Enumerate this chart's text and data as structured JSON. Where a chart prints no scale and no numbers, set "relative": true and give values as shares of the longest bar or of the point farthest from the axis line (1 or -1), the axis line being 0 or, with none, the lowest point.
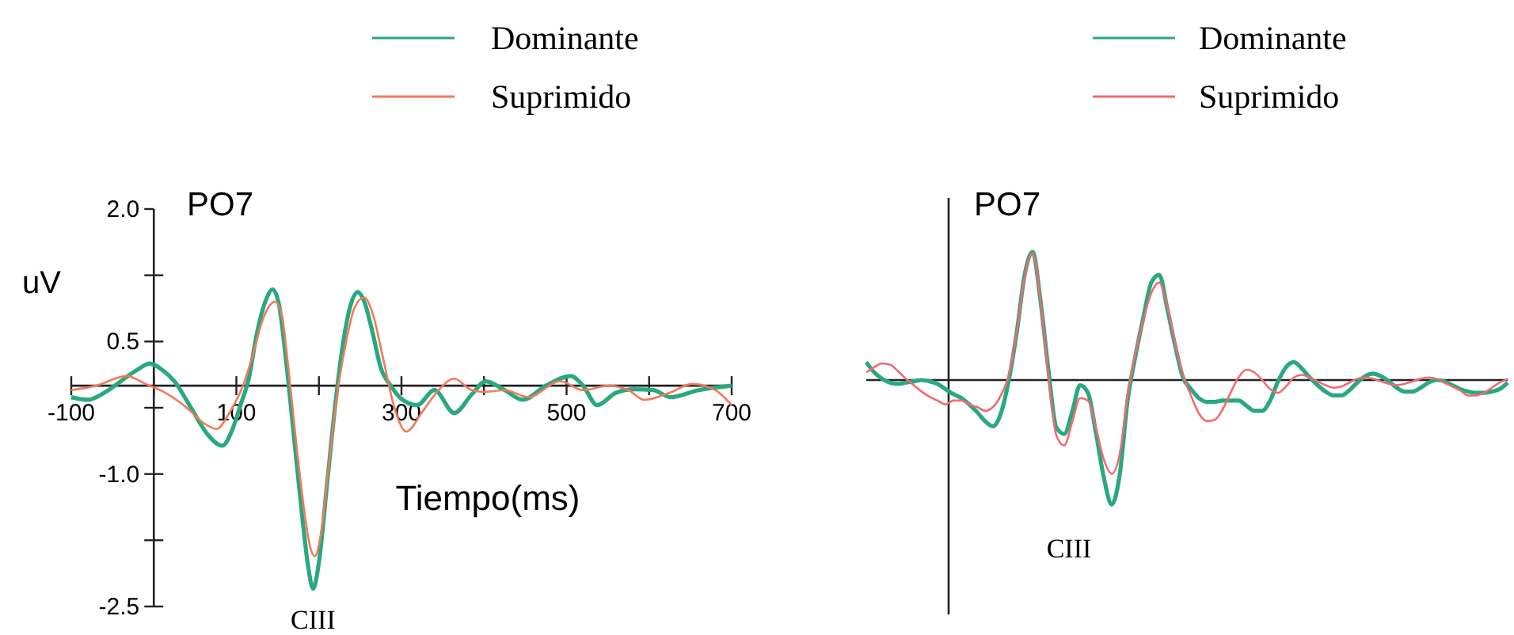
{
  "chart_data": [
    {
      "type": "line",
      "title": "PO7",
      "xlabel": "Tiempo(ms)",
      "ylabel": "uV",
      "xlim": [
        -100,
        700
      ],
      "ylim": [
        -2.5,
        2.0
      ],
      "xticks": [
        -100,
        {
          "value": 0,
          "label": null
        },
        100,
        {
          "value": 200,
          "label": null
        },
        300,
        {
          "value": 400,
          "label": null
        },
        500,
        {
          "value": 600,
          "label": null
        },
        700
      ],
      "yticks": [
        {
          "value": 2,
          "label": "2.0"
        },
        {
          "value": 1.25,
          "label": null
        },
        0.5,
        {
          "value": -0.25,
          "label": null
        },
        {
          "value": -1,
          "label": "-1.0"
        },
        {
          "value": -1.75,
          "label": null
        },
        -2.5
      ],
      "legend": "top",
      "line_style": "solid",
      "marker": "none",
      "annotations": [
        {
          "text": "CIII",
          "x": 193,
          "y": -2.3
        }
      ],
      "series": [
        {
          "name": "Dominante",
          "color": "#2aa880",
          "x": [
            -100,
            -80,
            -60,
            -40,
            -20,
            -5,
            10,
            25,
            45,
            65,
            83,
            95,
            105,
            115,
            125,
            135,
            144,
            152,
            160,
            170,
            180,
            187,
            193,
            200,
            210,
            220,
            228,
            238,
            247,
            255,
            265,
            275,
            287,
            300,
            319,
            340,
            364,
            385,
            402,
            425,
            447,
            475,
            505,
            520,
            537,
            560,
            582,
            605,
            626,
            660,
            700
          ],
          "values": [
            -0.13,
            -0.16,
            -0.08,
            0.05,
            0.18,
            0.25,
            0.18,
            0.05,
            -0.25,
            -0.55,
            -0.68,
            -0.5,
            -0.22,
            0.08,
            0.6,
            0.95,
            1.09,
            0.9,
            0.3,
            -0.6,
            -1.5,
            -2.05,
            -2.3,
            -2.0,
            -1.1,
            -0.2,
            0.4,
            0.9,
            1.06,
            0.95,
            0.6,
            0.2,
            0,
            -0.15,
            -0.22,
            -0.05,
            -0.31,
            -0.1,
            0.05,
            -0.05,
            -0.16,
            0,
            0.11,
            0,
            -0.22,
            -0.08,
            -0.04,
            -0.05,
            -0.13,
            -0.05,
            0
          ]
        },
        {
          "name": "Suprimido",
          "color": "#f27a5a",
          "x": [
            -100,
            -70,
            -33,
            -10,
            12,
            40,
            60,
            76,
            92,
            108,
            120,
            132,
            147,
            155,
            163,
            172,
            182,
            190,
            195,
            202,
            212,
            222,
            232,
            243,
            255,
            265,
            278,
            290,
            306,
            325,
            345,
            364,
            385,
            402,
            425,
            454,
            492,
            520,
            550,
            575,
            594,
            625,
            652,
            680,
            700
          ],
          "values": [
            -0.05,
            0,
            0.11,
            0.02,
            -0.07,
            -0.25,
            -0.42,
            -0.49,
            -0.3,
            0,
            0.35,
            0.75,
            0.95,
            0.8,
            0.2,
            -0.6,
            -1.4,
            -1.85,
            -1.93,
            -1.7,
            -0.9,
            -0.1,
            0.45,
            0.88,
            1.0,
            0.82,
            0.3,
            -0.2,
            -0.52,
            -0.3,
            -0.05,
            0.08,
            -0.05,
            -0.07,
            -0.05,
            -0.13,
            0.05,
            -0.05,
            0,
            -0.05,
            -0.16,
            -0.08,
            0.02,
            -0.05,
            -0.22
          ]
        }
      ]
    },
    {
      "type": "line",
      "title": "PO7",
      "relative": true,
      "legend": "top",
      "line_style": "solid",
      "marker": "none",
      "annotations": [
        "CIII"
      ],
      "categories": [
        null,
        null,
        null,
        null,
        null,
        null,
        null,
        null,
        null,
        null,
        null,
        null,
        null,
        null,
        null,
        null,
        null,
        null,
        null,
        null,
        null,
        null,
        null,
        null,
        null,
        null,
        null,
        null,
        null,
        null,
        null,
        null,
        null,
        null,
        null,
        null,
        null,
        null,
        null,
        null,
        null,
        null,
        null,
        null,
        null,
        null,
        null,
        null,
        null,
        null,
        null,
        null,
        null,
        null,
        null,
        null,
        null,
        null,
        null,
        null,
        null,
        null,
        null,
        null,
        null,
        null,
        null,
        null,
        null,
        null,
        null,
        null,
        null,
        null,
        null,
        null,
        null,
        null,
        null,
        null,
        null,
        null
      ],
      "series": [
        {
          "name": "Dominante",
          "color": "#2aa880",
          "values": [
            0.14,
            0.06,
            0.01,
            -0.02,
            -0.03,
            -0.02,
            -0.01,
            0,
            -0.01,
            -0.03,
            -0.07,
            -0.11,
            -0.14,
            -0.19,
            -0.25,
            -0.32,
            -0.36,
            -0.26,
            0,
            0.37,
            0.82,
            1.0,
            0.62,
            0.08,
            -0.37,
            -0.42,
            -0.25,
            -0.04,
            -0.1,
            -0.41,
            -0.76,
            -0.97,
            -0.74,
            -0.16,
            0.19,
            0.49,
            0.76,
            0.82,
            0.56,
            0.27,
            0.02,
            -0.07,
            -0.14,
            -0.17,
            -0.17,
            -0.16,
            -0.16,
            -0.16,
            -0.2,
            -0.24,
            -0.24,
            -0.16,
            -0.01,
            0.1,
            0.14,
            0.09,
            0.02,
            -0.04,
            -0.09,
            -0.12,
            -0.12,
            -0.08,
            -0.02,
            0.03,
            0.05,
            0.03,
            -0.01,
            -0.06,
            -0.09,
            -0.09,
            -0.06,
            -0.02,
            0,
            -0.01,
            -0.04,
            -0.07,
            -0.09,
            -0.1,
            -0.1,
            -0.09,
            -0.07,
            -0.02
          ]
        },
        {
          "name": "Suprimido",
          "color": "#f26a72",
          "values": [
            0.06,
            0.1,
            0.13,
            0.12,
            0.07,
            0.01,
            -0.04,
            -0.09,
            -0.13,
            -0.16,
            -0.19,
            -0.16,
            -0.16,
            -0.19,
            -0.21,
            -0.24,
            -0.21,
            -0.12,
            0.04,
            0.37,
            0.8,
            0.99,
            0.62,
            0.04,
            -0.43,
            -0.51,
            -0.33,
            -0.14,
            -0.16,
            -0.37,
            -0.62,
            -0.73,
            -0.58,
            -0.12,
            0.21,
            0.47,
            0.68,
            0.76,
            0.58,
            0.29,
            0.04,
            -0.12,
            -0.26,
            -0.32,
            -0.31,
            -0.23,
            -0.1,
            0.02,
            0.08,
            0.06,
            0,
            -0.07,
            -0.1,
            -0.05,
            0.02,
            0.04,
            0.02,
            -0.01,
            -0.04,
            -0.06,
            -0.05,
            -0.02,
            0.01,
            0.02,
            0.01,
            -0.01,
            -0.03,
            -0.04,
            -0.03,
            -0.01,
            0.01,
            0.02,
            0.01,
            -0.02,
            -0.05,
            -0.08,
            -0.12,
            -0.12,
            -0.1,
            -0.06,
            -0.02,
            0.01
          ]
        }
      ]
    }
  ]
}
